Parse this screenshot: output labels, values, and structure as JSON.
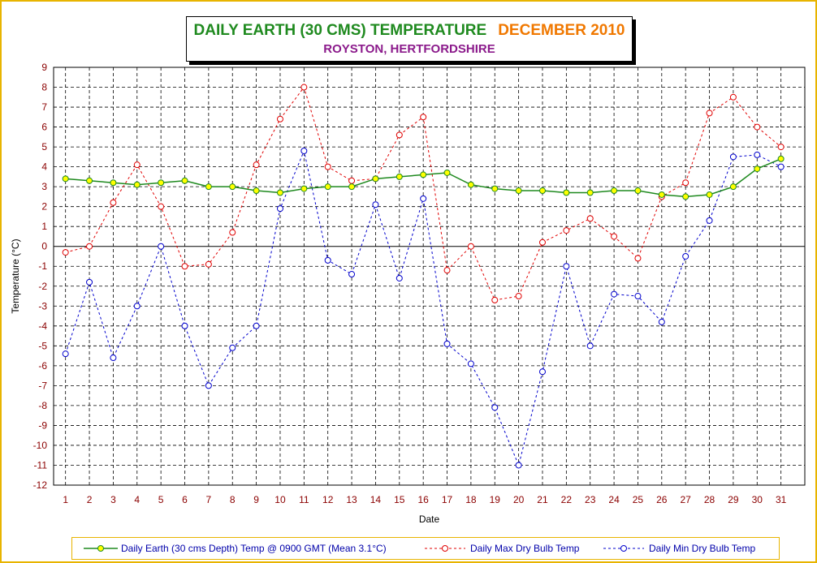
{
  "chart_data": {
    "type": "line",
    "title": "DAILY EARTH (30 CMS) TEMPERATURE",
    "title_date": "DECEMBER 2010",
    "subtitle": "ROYSTON, HERTFORDSHIRE",
    "xlabel": "Date",
    "ylabel": "Temperature (°C)",
    "ylim": [
      -12,
      9
    ],
    "x": [
      1,
      2,
      3,
      4,
      5,
      6,
      7,
      8,
      9,
      10,
      11,
      12,
      13,
      14,
      15,
      16,
      17,
      18,
      19,
      20,
      21,
      22,
      23,
      24,
      25,
      26,
      27,
      28,
      29,
      30,
      31
    ],
    "y_ticks": [
      9,
      8,
      7,
      6,
      5,
      4,
      3,
      2,
      1,
      0,
      -1,
      -2,
      -3,
      -4,
      -5,
      -6,
      -7,
      -8,
      -9,
      -10,
      -11,
      -12
    ],
    "grid": true,
    "legend_position": "bottom",
    "series": [
      {
        "name": "Daily Earth (30 cms Depth) Temp @ 0900 GMT (Mean 3.1°C)",
        "color": "#1f8a1f",
        "marker_fill": "#ffff00",
        "style": "solid",
        "values": [
          3.4,
          3.3,
          3.2,
          3.1,
          3.2,
          3.3,
          3.0,
          3.0,
          2.8,
          2.7,
          2.9,
          3.0,
          3.0,
          3.4,
          3.5,
          3.6,
          3.7,
          3.1,
          2.9,
          2.8,
          2.8,
          2.7,
          2.7,
          2.8,
          2.8,
          2.6,
          2.5,
          2.6,
          3.0,
          3.9,
          4.4
        ]
      },
      {
        "name": "Daily Max Dry Bulb Temp",
        "color": "#e00000",
        "style": "dashed",
        "values": [
          -0.3,
          0.0,
          2.2,
          4.1,
          2.0,
          -1.0,
          -0.9,
          0.7,
          4.1,
          6.4,
          8.0,
          4.0,
          3.3,
          3.4,
          5.6,
          6.5,
          -1.2,
          0.0,
          -2.7,
          -2.5,
          0.2,
          0.8,
          1.4,
          0.5,
          -0.6,
          2.5,
          3.2,
          6.7,
          7.5,
          6.0,
          5.0
        ]
      },
      {
        "name": "Daily Min Dry Bulb Temp",
        "color": "#0000cc",
        "style": "dashed",
        "values": [
          -5.4,
          -1.8,
          -5.6,
          -3.0,
          0.0,
          -4.0,
          -7.0,
          -5.1,
          -4.0,
          1.9,
          4.8,
          -0.7,
          -1.4,
          2.1,
          -1.6,
          2.4,
          -4.9,
          -5.9,
          -8.1,
          -11.0,
          -6.3,
          -1.0,
          -5.0,
          -2.4,
          -2.5,
          -3.8,
          -0.5,
          1.3,
          4.5,
          4.6,
          4.0
        ]
      }
    ]
  }
}
